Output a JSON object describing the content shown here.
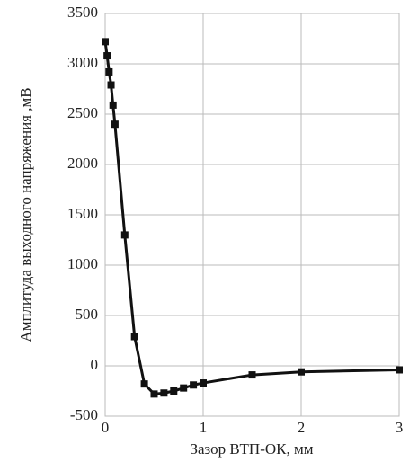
{
  "chart_data": {
    "type": "line",
    "x_label": "Зазор ВТП-ОК, мм",
    "y_label": "Амплитуда выходного напряжения ,мВ",
    "x": [
      0,
      0.02,
      0.04,
      0.06,
      0.08,
      0.1,
      0.2,
      0.3,
      0.4,
      0.5,
      0.6,
      0.7,
      0.8,
      0.9,
      1.0,
      1.5,
      2,
      3
    ],
    "series": [
      {
        "color": "#111111",
        "values": [
          3220,
          3080,
          2920,
          2790,
          2590,
          2400,
          1300,
          290,
          -180,
          -280,
          -270,
          -250,
          -220,
          -190,
          -170,
          -90,
          -60,
          -40
        ]
      }
    ],
    "xlim": [
      0,
      3
    ],
    "xticks": [
      0,
      1,
      2,
      3
    ],
    "ylim": [
      -500,
      3500
    ],
    "yticks": [
      -500,
      0,
      500,
      1000,
      1500,
      2000,
      2500,
      3000,
      3500
    ],
    "grid": true,
    "marker": "square"
  }
}
